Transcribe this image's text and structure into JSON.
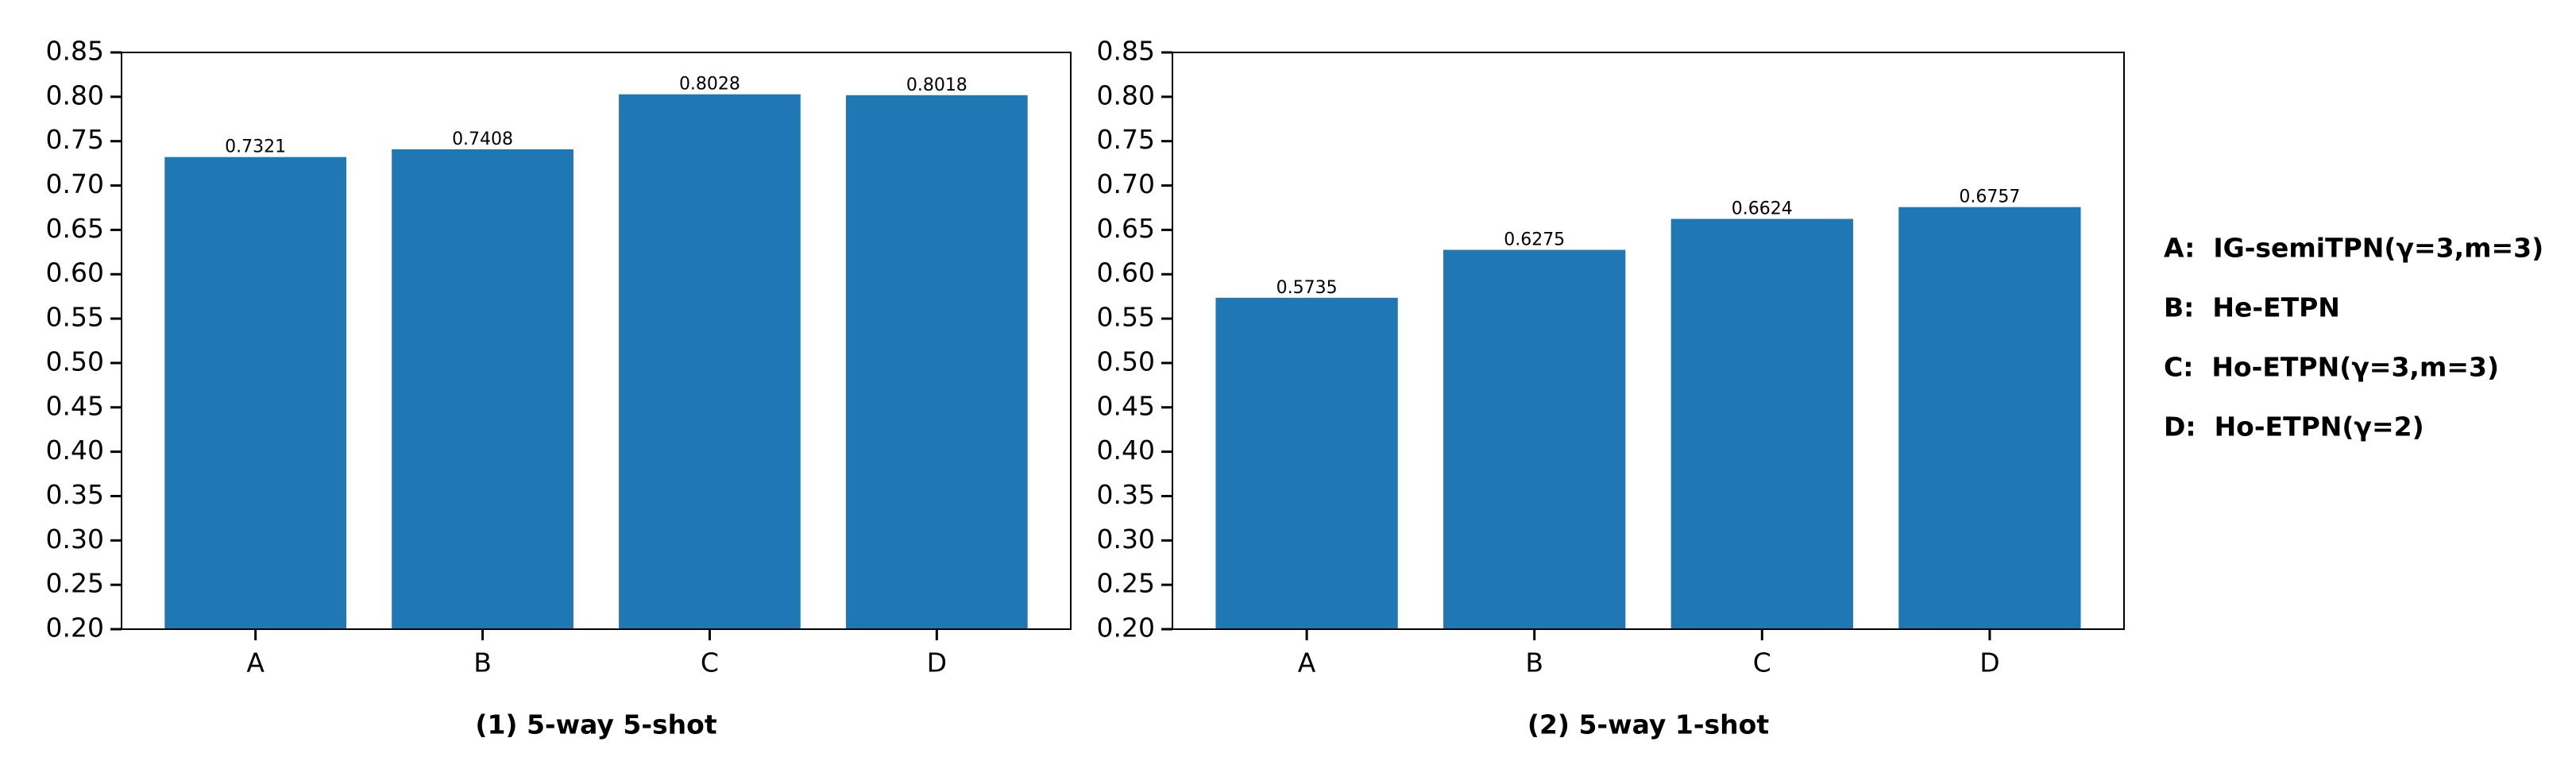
{
  "chart_data": [
    {
      "type": "bar",
      "title": "(1) 5-way 5-shot",
      "categories": [
        "A",
        "B",
        "C",
        "D"
      ],
      "values": [
        0.7321,
        0.7408,
        0.8028,
        0.8018
      ],
      "color": "#1f77b4",
      "ylim": [
        0.2,
        0.85
      ],
      "yticks": [
        {
          "value": 0.2,
          "label": "0.20"
        },
        0.25,
        {
          "value": 0.3,
          "label": "0.30"
        },
        0.35,
        {
          "value": 0.4,
          "label": "0.40"
        },
        0.45,
        {
          "value": 0.5,
          "label": "0.50"
        },
        0.55,
        {
          "value": 0.6,
          "label": "0.60"
        },
        0.65,
        {
          "value": 0.7,
          "label": "0.70"
        },
        0.75,
        {
          "value": 0.8,
          "label": "0.80"
        },
        0.85
      ]
    },
    {
      "type": "bar",
      "title": "(2) 5-way 1-shot",
      "categories": [
        "A",
        "B",
        "C",
        "D"
      ],
      "values": [
        0.5735,
        0.6275,
        0.6624,
        0.6757
      ],
      "color": "#1f77b4",
      "ylim": [
        0.2,
        0.85
      ],
      "yticks": [
        {
          "value": 0.2,
          "label": "0.20"
        },
        0.25,
        {
          "value": 0.3,
          "label": "0.30"
        },
        0.35,
        {
          "value": 0.4,
          "label": "0.40"
        },
        0.45,
        {
          "value": 0.5,
          "label": "0.50"
        },
        0.55,
        {
          "value": 0.6,
          "label": "0.60"
        },
        0.65,
        {
          "value": 0.7,
          "label": "0.70"
        },
        0.75,
        {
          "value": 0.8,
          "label": "0.80"
        },
        0.85
      ]
    }
  ],
  "notes": [
    "A:  IG-semiTPN(γ=3,m=3)",
    "B:  He-ETPN",
    "C:  Ho-ETPN(γ=3,m=3)",
    "D:  Ho-ETPN(γ=2)"
  ]
}
